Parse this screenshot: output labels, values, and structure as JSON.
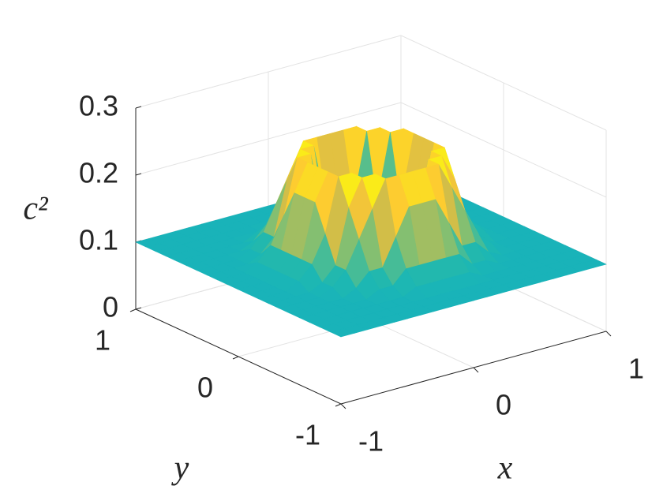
{
  "chart_data": {
    "type": "surface",
    "xlabel": "x",
    "ylabel": "y",
    "zlabel": "c²",
    "xlim": [
      -1,
      1
    ],
    "ylim": [
      -1,
      1
    ],
    "zlim": [
      0,
      0.3
    ],
    "xticks": [
      -1,
      0,
      1
    ],
    "yticks": [
      -1,
      0,
      1
    ],
    "zticks": [
      0,
      0.1,
      0.2,
      0.3
    ],
    "grid": true,
    "colormap": [
      "#3e26a8",
      "#2f6ff0",
      "#14b0c0",
      "#1fb8b0",
      "#6cc07e",
      "#c9bc4d",
      "#fdc733",
      "#f9fb0e"
    ],
    "x": [
      -1,
      -0.9,
      -0.8,
      -0.7,
      -0.6,
      -0.5,
      -0.4,
      -0.3,
      -0.2,
      -0.1,
      0,
      0.1,
      0.2,
      0.3,
      0.4,
      0.5,
      0.6,
      0.7,
      0.8,
      0.9,
      1
    ],
    "y": [
      -1,
      -0.9,
      -0.8,
      -0.7,
      -0.6,
      -0.5,
      -0.4,
      -0.3,
      -0.2,
      -0.1,
      0,
      0.1,
      0.2,
      0.3,
      0.4,
      0.5,
      0.6,
      0.7,
      0.8,
      0.9,
      1
    ],
    "z": [
      [
        0.1,
        0.1,
        0.1,
        0.1,
        0.1,
        0.1,
        0.1,
        0.1,
        0.1,
        0.1,
        0.1,
        0.1,
        0.1,
        0.1,
        0.1,
        0.1,
        0.1,
        0.1,
        0.1,
        0.1,
        0.1
      ],
      [
        0.1,
        0.1,
        0.1,
        0.1,
        0.1,
        0.1,
        0.1,
        0.1,
        0.1,
        0.1,
        0.1,
        0.1,
        0.1,
        0.1,
        0.1,
        0.1,
        0.1,
        0.1,
        0.1,
        0.1,
        0.1
      ],
      [
        0.1,
        0.1,
        0.1,
        0.1,
        0.1,
        0.1,
        0.1,
        0.1,
        0.1,
        0.1,
        0.1,
        0.1,
        0.1,
        0.1,
        0.1,
        0.1,
        0.1,
        0.1,
        0.1,
        0.1,
        0.1
      ],
      [
        0.1,
        0.1,
        0.1,
        0.1,
        0.1,
        0.1,
        0.1,
        0.1,
        0.11,
        0.11,
        0.11,
        0.11,
        0.11,
        0.1,
        0.1,
        0.1,
        0.1,
        0.1,
        0.1,
        0.1,
        0.1
      ],
      [
        0.1,
        0.1,
        0.1,
        0.1,
        0.1,
        0.1,
        0.11,
        0.11,
        0.13,
        0.13,
        0.13,
        0.13,
        0.13,
        0.11,
        0.11,
        0.1,
        0.1,
        0.1,
        0.1,
        0.1,
        0.1
      ],
      [
        0.1,
        0.1,
        0.1,
        0.1,
        0.1,
        0.11,
        0.13,
        0.13,
        0.17,
        0.21,
        0.21,
        0.21,
        0.17,
        0.13,
        0.13,
        0.11,
        0.1,
        0.1,
        0.1,
        0.1,
        0.1
      ],
      [
        0.1,
        0.1,
        0.1,
        0.1,
        0.11,
        0.13,
        0.17,
        0.21,
        0.25,
        0.25,
        0.25,
        0.25,
        0.25,
        0.21,
        0.17,
        0.13,
        0.11,
        0.1,
        0.1,
        0.1,
        0.1
      ],
      [
        0.1,
        0.1,
        0.1,
        0.1,
        0.11,
        0.13,
        0.21,
        0.25,
        0.25,
        0.15,
        0.15,
        0.15,
        0.25,
        0.25,
        0.21,
        0.13,
        0.11,
        0.1,
        0.1,
        0.1,
        0.1
      ],
      [
        0.1,
        0.1,
        0.1,
        0.11,
        0.13,
        0.17,
        0.25,
        0.25,
        0.15,
        0.02,
        0.02,
        0.02,
        0.15,
        0.25,
        0.25,
        0.17,
        0.13,
        0.11,
        0.1,
        0.1,
        0.1
      ],
      [
        0.1,
        0.1,
        0.1,
        0.11,
        0.13,
        0.21,
        0.25,
        0.15,
        0.02,
        0.02,
        0.02,
        0.02,
        0.02,
        0.15,
        0.25,
        0.21,
        0.13,
        0.11,
        0.1,
        0.1,
        0.1
      ],
      [
        0.1,
        0.1,
        0.1,
        0.11,
        0.13,
        0.21,
        0.25,
        0.15,
        0.02,
        0.02,
        0.02,
        0.02,
        0.02,
        0.15,
        0.25,
        0.21,
        0.13,
        0.11,
        0.1,
        0.1,
        0.1
      ],
      [
        0.1,
        0.1,
        0.1,
        0.11,
        0.13,
        0.21,
        0.25,
        0.15,
        0.02,
        0.02,
        0.02,
        0.02,
        0.02,
        0.15,
        0.25,
        0.21,
        0.13,
        0.11,
        0.1,
        0.1,
        0.1
      ],
      [
        0.1,
        0.1,
        0.1,
        0.11,
        0.13,
        0.17,
        0.25,
        0.25,
        0.15,
        0.02,
        0.02,
        0.02,
        0.15,
        0.25,
        0.25,
        0.17,
        0.13,
        0.11,
        0.1,
        0.1,
        0.1
      ],
      [
        0.1,
        0.1,
        0.1,
        0.1,
        0.11,
        0.13,
        0.21,
        0.25,
        0.25,
        0.15,
        0.15,
        0.15,
        0.25,
        0.25,
        0.21,
        0.13,
        0.11,
        0.1,
        0.1,
        0.1,
        0.1
      ],
      [
        0.1,
        0.1,
        0.1,
        0.1,
        0.11,
        0.13,
        0.17,
        0.21,
        0.25,
        0.25,
        0.25,
        0.25,
        0.25,
        0.21,
        0.17,
        0.13,
        0.11,
        0.1,
        0.1,
        0.1,
        0.1
      ],
      [
        0.1,
        0.1,
        0.1,
        0.1,
        0.1,
        0.11,
        0.13,
        0.13,
        0.17,
        0.21,
        0.21,
        0.21,
        0.17,
        0.13,
        0.13,
        0.11,
        0.1,
        0.1,
        0.1,
        0.1,
        0.1
      ],
      [
        0.1,
        0.1,
        0.1,
        0.1,
        0.1,
        0.1,
        0.11,
        0.11,
        0.13,
        0.13,
        0.13,
        0.13,
        0.13,
        0.11,
        0.11,
        0.1,
        0.1,
        0.1,
        0.1,
        0.1,
        0.1
      ],
      [
        0.1,
        0.1,
        0.1,
        0.1,
        0.1,
        0.1,
        0.1,
        0.1,
        0.11,
        0.11,
        0.11,
        0.11,
        0.11,
        0.1,
        0.1,
        0.1,
        0.1,
        0.1,
        0.1,
        0.1,
        0.1
      ],
      [
        0.1,
        0.1,
        0.1,
        0.1,
        0.1,
        0.1,
        0.1,
        0.1,
        0.1,
        0.1,
        0.1,
        0.1,
        0.1,
        0.1,
        0.1,
        0.1,
        0.1,
        0.1,
        0.1,
        0.1,
        0.1
      ],
      [
        0.1,
        0.1,
        0.1,
        0.1,
        0.1,
        0.1,
        0.1,
        0.1,
        0.1,
        0.1,
        0.1,
        0.1,
        0.1,
        0.1,
        0.1,
        0.1,
        0.1,
        0.1,
        0.1,
        0.1,
        0.1
      ],
      [
        0.1,
        0.1,
        0.1,
        0.1,
        0.1,
        0.1,
        0.1,
        0.1,
        0.1,
        0.1,
        0.1,
        0.1,
        0.1,
        0.1,
        0.1,
        0.1,
        0.1,
        0.1,
        0.1,
        0.1,
        0.1
      ]
    ]
  }
}
